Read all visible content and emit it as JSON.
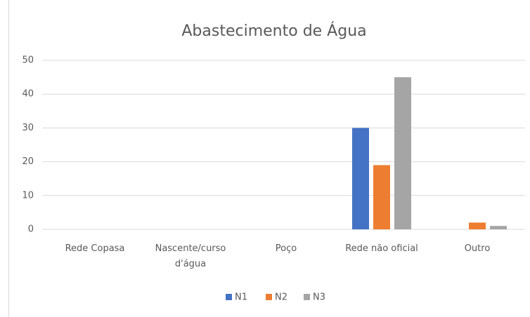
{
  "chart_data": {
    "type": "bar",
    "title": "Abastecimento de Água",
    "categories": [
      "Rede Copasa",
      "Nascente/curso d'água",
      "Poço",
      "Rede não oficial",
      "Outro"
    ],
    "series": [
      {
        "name": "N1",
        "color": "#4472c4",
        "values": [
          0,
          0,
          0,
          30,
          0
        ]
      },
      {
        "name": "N2",
        "color": "#ed7d31",
        "values": [
          0,
          0,
          0,
          19,
          2
        ]
      },
      {
        "name": "N3",
        "color": "#a5a5a5",
        "values": [
          0,
          0,
          0,
          45,
          1
        ]
      }
    ],
    "ylim": [
      0,
      50
    ],
    "yticks": [
      0,
      10,
      20,
      30,
      40,
      50
    ],
    "grid": true,
    "legend": "bottom"
  }
}
